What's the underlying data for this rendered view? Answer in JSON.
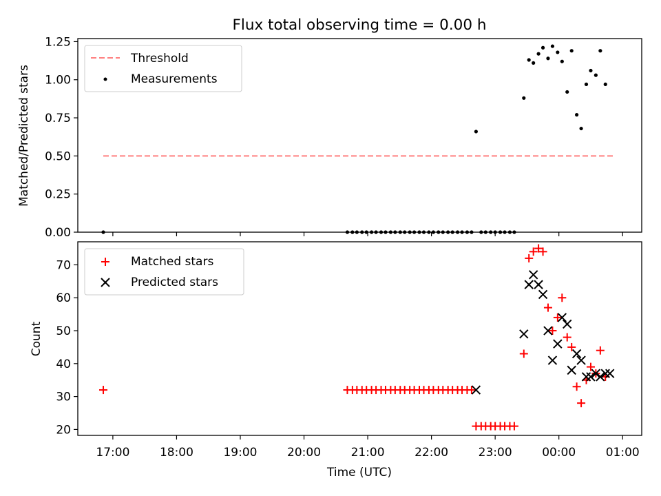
{
  "colors": {
    "threshold": "#ff7f7f",
    "measurements": "#000000",
    "matched": "#ff0000",
    "predicted": "#000000",
    "axes": "#000000",
    "background": "#ffffff"
  },
  "x_ticks": [
    "17:00",
    "18:00",
    "19:00",
    "20:00",
    "21:00",
    "22:00",
    "23:00",
    "00:00",
    "01:00"
  ],
  "xlabel": "Time (UTC)",
  "chart_data": [
    {
      "type": "scatter",
      "title": "Flux total observing time = 0.00 h",
      "xlabel": "",
      "ylabel": "Matched/Predicted stars",
      "x_unit": "hours (UTC, values above 24 are after midnight)",
      "xlim": [
        16.45,
        25.3
      ],
      "ylim": [
        0,
        1.27
      ],
      "y_ticks": [
        "0.00",
        "0.25",
        "0.50",
        "0.75",
        "1.00",
        "1.25"
      ],
      "y_tick_values": [
        0,
        0.25,
        0.5,
        0.75,
        1.0,
        1.25
      ],
      "legend": {
        "position": "top-left",
        "entries": [
          "Threshold",
          "Measurements"
        ]
      },
      "series": [
        {
          "name": "Threshold",
          "style": "dashed-line",
          "x": [
            16.85,
            24.85
          ],
          "values": [
            0.5,
            0.5
          ]
        },
        {
          "name": "Measurements",
          "style": "dot",
          "x": [
            16.85,
            20.68,
            20.76,
            20.83,
            20.91,
            20.98,
            21.06,
            21.13,
            21.21,
            21.28,
            21.36,
            21.43,
            21.51,
            21.58,
            21.66,
            21.73,
            21.81,
            21.88,
            21.96,
            22.03,
            22.11,
            22.18,
            22.26,
            22.33,
            22.41,
            22.48,
            22.56,
            22.63,
            22.7,
            22.78,
            22.85,
            22.93,
            23.0,
            23.08,
            23.15,
            23.23,
            23.3,
            23.45,
            23.53,
            23.6,
            23.68,
            23.75,
            23.83,
            23.9,
            23.98,
            24.05,
            24.13,
            24.2,
            24.28,
            24.35,
            24.43,
            24.5,
            24.58,
            24.65,
            24.73,
            24.8,
            24.88
          ],
          "values": [
            0,
            0,
            0,
            0,
            0,
            0,
            0,
            0,
            0,
            0,
            0,
            0,
            0,
            0,
            0,
            0,
            0,
            0,
            0,
            0,
            0,
            0,
            0,
            0,
            0,
            0,
            0,
            0,
            0.66,
            0,
            0,
            0,
            0,
            0,
            0,
            0,
            0,
            0.88,
            1.13,
            1.11,
            1.17,
            1.21,
            1.14,
            1.22,
            1.18,
            1.12,
            0.92,
            1.19,
            0.77,
            0.68,
            0.97,
            1.06,
            1.03,
            1.19,
            0.97,
            null,
            null
          ]
        }
      ]
    },
    {
      "type": "scatter",
      "title": "",
      "xlabel": "Time (UTC)",
      "ylabel": "Count",
      "x_unit": "hours (UTC, values above 24 are after midnight)",
      "xlim": [
        16.45,
        25.3
      ],
      "ylim": [
        18.2,
        77
      ],
      "y_ticks": [
        "20",
        "30",
        "40",
        "50",
        "60",
        "70"
      ],
      "y_tick_values": [
        20,
        30,
        40,
        50,
        60,
        70
      ],
      "legend": {
        "position": "top-left",
        "entries": [
          "Matched stars",
          "Predicted stars"
        ]
      },
      "series": [
        {
          "name": "Matched stars",
          "style": "plus",
          "x": [
            16.85,
            20.68,
            20.76,
            20.83,
            20.91,
            20.98,
            21.06,
            21.13,
            21.21,
            21.28,
            21.36,
            21.43,
            21.51,
            21.58,
            21.66,
            21.73,
            21.81,
            21.88,
            21.96,
            22.03,
            22.11,
            22.18,
            22.26,
            22.33,
            22.41,
            22.48,
            22.56,
            22.63,
            22.7,
            22.78,
            22.85,
            22.93,
            23.0,
            23.08,
            23.15,
            23.23,
            23.3,
            23.45,
            23.53,
            23.6,
            23.68,
            23.75,
            23.83,
            23.9,
            23.98,
            24.05,
            24.13,
            24.2,
            24.28,
            24.35,
            24.43,
            24.5,
            24.58,
            24.65,
            24.73,
            24.8,
            24.88
          ],
          "values": [
            32,
            32,
            32,
            32,
            32,
            32,
            32,
            32,
            32,
            32,
            32,
            32,
            32,
            32,
            32,
            32,
            32,
            32,
            32,
            32,
            32,
            32,
            32,
            32,
            32,
            32,
            32,
            32,
            21,
            21,
            21,
            21,
            21,
            21,
            21,
            21,
            21,
            43,
            72,
            74,
            75,
            74,
            57,
            50,
            54,
            60,
            48,
            45,
            33,
            28,
            35,
            39,
            37,
            44,
            36,
            null,
            null
          ]
        },
        {
          "name": "Predicted stars",
          "style": "x",
          "x": [
            22.7,
            23.45,
            23.53,
            23.6,
            23.68,
            23.75,
            23.83,
            23.9,
            23.98,
            24.05,
            24.13,
            24.2,
            24.28,
            24.35,
            24.43,
            24.5,
            24.58,
            24.65,
            24.73,
            24.8
          ],
          "values": [
            32,
            49,
            64,
            67,
            64,
            61,
            50,
            41,
            46,
            54,
            52,
            38,
            43,
            41,
            36,
            36,
            37,
            36,
            37,
            37
          ]
        }
      ]
    }
  ]
}
